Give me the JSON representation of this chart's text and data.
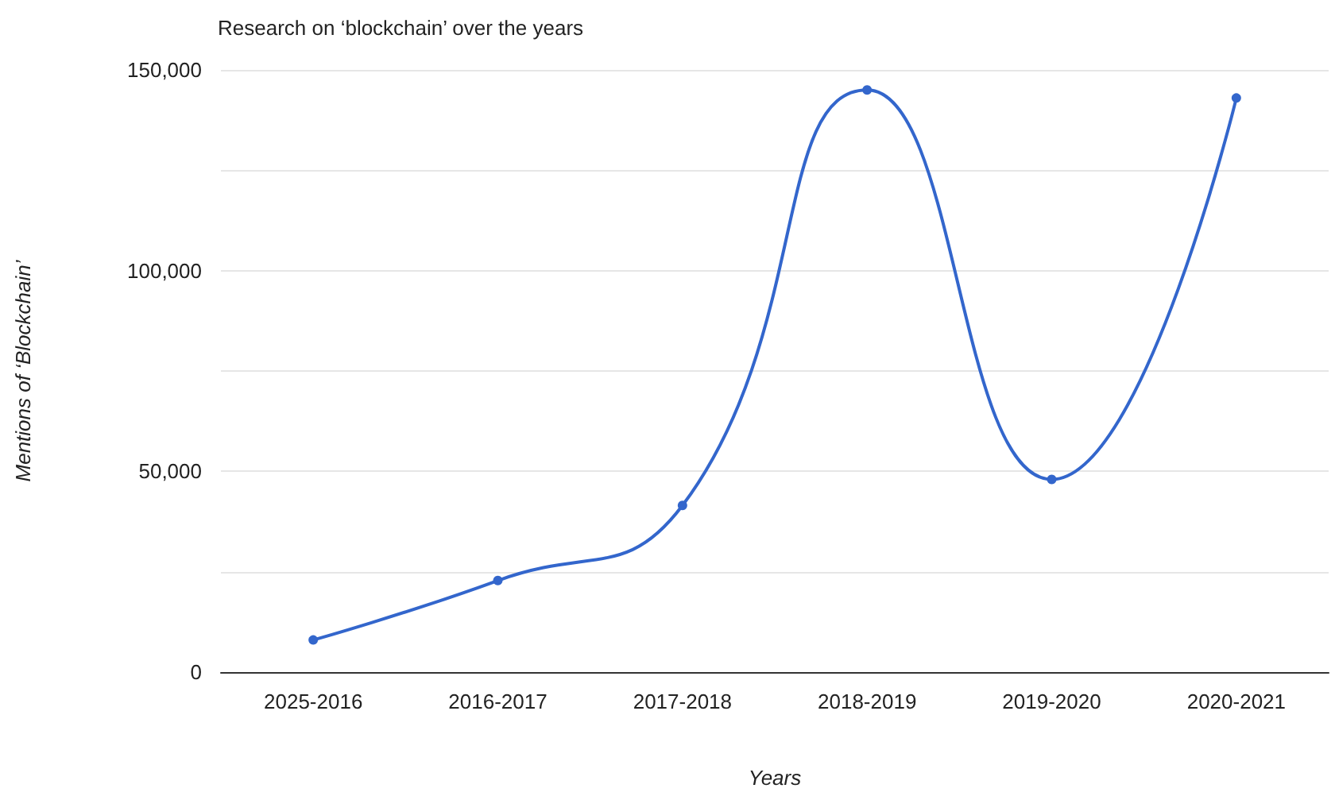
{
  "chart_data": {
    "type": "line",
    "title": "Research on ‘blockchain’ over the years",
    "xlabel": "Years",
    "ylabel": "Mentions of ‘Blockchain’",
    "categories": [
      "2025-2016",
      "2016-2017",
      "2017-2018",
      "2018-2019",
      "2019-2020",
      "2020-2021"
    ],
    "series": [
      {
        "color": "#3366cc",
        "values": [
          8000,
          22800,
          41500,
          145000,
          48000,
          143000
        ]
      }
    ],
    "ylim": [
      0,
      150000
    ],
    "yticks": [
      0,
      {
        "value": 25000,
        "label": null
      },
      {
        "value": 50000,
        "label": "50,000"
      },
      {
        "value": 75000,
        "label": null
      },
      {
        "value": 100000,
        "label": "100,000"
      },
      {
        "value": 125000,
        "label": null
      },
      {
        "value": 150000,
        "label": "150,000"
      }
    ],
    "grid": "y",
    "marker": "circle",
    "line_style": "solid"
  }
}
